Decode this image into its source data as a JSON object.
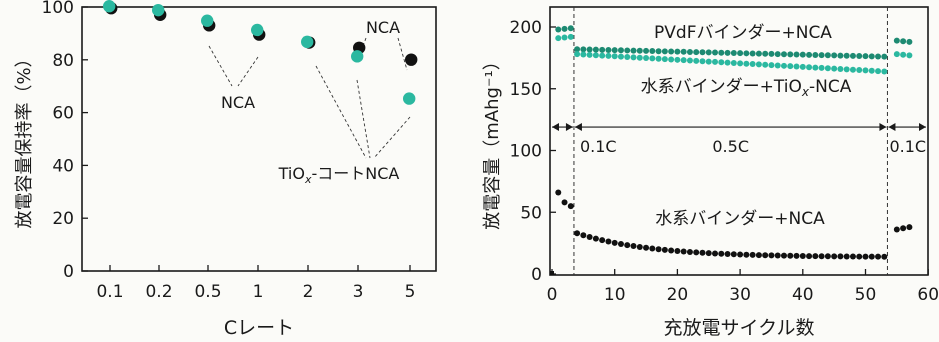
{
  "colors": {
    "black": "#111111",
    "teal": "#2bb8a0",
    "dark_teal": "#1d8a72",
    "axis": "#1a1a1a"
  },
  "chart_data": [
    {
      "type": "scatter",
      "xlabel": "Cレート",
      "ylabel": "放電容量保持率（%）",
      "categories": [
        "0.1",
        "0.2",
        "0.5",
        "1",
        "2",
        "3",
        "5"
      ],
      "ylim": [
        0,
        100
      ],
      "yticks": [
        "0",
        "20",
        "40",
        "60",
        "80",
        "100"
      ],
      "grid": false,
      "series": [
        {
          "name": "NCA",
          "color": "#111111",
          "values": [
            100,
            97.5,
            93.5,
            90,
            87,
            85,
            80.5
          ]
        },
        {
          "name": "TiOₓ-コートNCA",
          "color": "#2bb8a0",
          "values": [
            100,
            98.5,
            94.5,
            91,
            86.5,
            81,
            65
          ]
        }
      ],
      "annotations": {
        "nca": "NCA",
        "tiox_prefix": "TiO",
        "tiox_sub": "x",
        "tiox_suffix": "-コートNCA"
      }
    },
    {
      "type": "scatter",
      "xlabel": "充放電サイクル数",
      "ylabel": "放電容量（mAhg⁻¹）",
      "xlim": [
        0,
        60
      ],
      "ylim": [
        0,
        200
      ],
      "xticks": [
        "0",
        "10",
        "20",
        "30",
        "40",
        "50",
        "60"
      ],
      "yticks": [
        "0",
        "50",
        "100",
        "150",
        "200"
      ],
      "grid": false,
      "phase_boundaries": [
        3.5,
        53.5
      ],
      "phases": [
        {
          "label": "0.1C",
          "from": 0,
          "to": 3.5
        },
        {
          "label": "0.5C",
          "from": 3.5,
          "to": 53.5
        },
        {
          "label": "0.1C",
          "from": 53.5,
          "to": 57
        }
      ],
      "series": [
        {
          "name": "PVdFバインダー+NCA",
          "color": "#1d8a72",
          "segments": [
            {
              "x_start": 1,
              "x_end": 3,
              "y_start": 198,
              "y_end": 199
            },
            {
              "x_start": 4,
              "x_end": 53,
              "y_start": 182,
              "y_end": 176
            },
            {
              "x_start": 55,
              "x_end": 57,
              "y_start": 189,
              "y_end": 188
            }
          ]
        },
        {
          "name": "水系バインダー+TiOₓ-NCA",
          "color": "#2bb8a0",
          "segments": [
            {
              "x_start": 1,
              "x_end": 3,
              "y_start": 191,
              "y_end": 192
            },
            {
              "x_start": 4,
              "x_end": 53,
              "y_start": 178,
              "y_end": 164
            },
            {
              "x_start": 55,
              "x_end": 57,
              "y_start": 178,
              "y_end": 177
            }
          ]
        },
        {
          "name": "水系バインダー+NCA",
          "color": "#111111",
          "segments": [
            {
              "points": [
                [
                  1,
                  66
                ],
                [
                  2,
                  58
                ],
                [
                  3,
                  55
                ]
              ]
            },
            {
              "x_start": 4,
              "x_end": 53,
              "y_start": 33,
              "y_end": 14,
              "curve": "decay"
            },
            {
              "points": [
                [
                  55,
                  36
                ],
                [
                  56,
                  37
                ],
                [
                  57,
                  38
                ]
              ]
            }
          ]
        }
      ],
      "labels": {
        "pvdf": "PVdFバインダー+NCA",
        "aq_tiox_prefix": "水系バインダー+TiO",
        "aq_tiox_sub": "x",
        "aq_tiox_suffix": "-NCA",
        "aq_nca": "水系バインダー+NCA"
      }
    }
  ]
}
